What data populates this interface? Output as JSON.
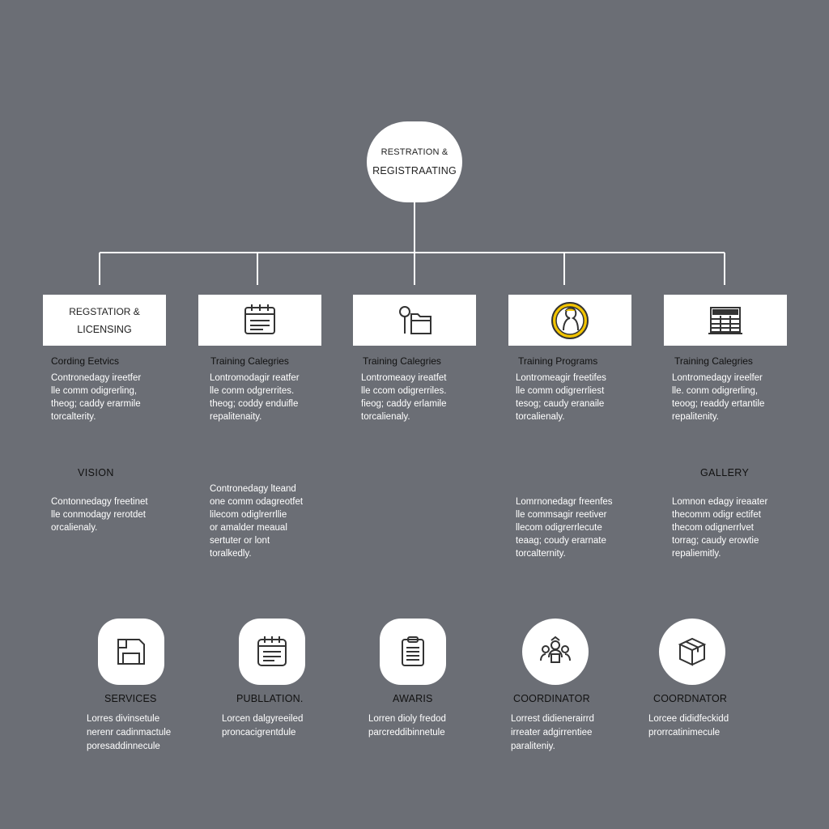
{
  "root": {
    "line1": "RESTRATION &",
    "line2": "REGISTRAATING"
  },
  "columns": [
    {
      "box_line1": "REGSTATIOR &",
      "box_line2": "LICENSING",
      "icon": "none",
      "title": "Cording Eetvics",
      "desc": "Contronedagy ireetfer\nlle comm odigrerling,\ntheog; caddy erarmile\ntorcalterity."
    },
    {
      "icon": "calendar-list-icon",
      "title": "Training Calegries",
      "desc": "Lontromodagir reatfer\nlle conm odgrerrites.\ntheog; coddy enduifle\nrepalitenaity."
    },
    {
      "icon": "magnifier-folder-icon",
      "title": "Training Calegries",
      "desc": "Lontromeaoy ireatfet\nlle ccom odigrerriles.\nfieog; caddy erlamile\ntorcalienaly."
    },
    {
      "icon": "person-profile-icon",
      "title": "Training Programs",
      "desc": "Lontromeagir freetifes\nlle comm odigrerrliest\ntesog; caudy eranaile\ntorcalienaly."
    },
    {
      "icon": "window-grid-icon",
      "title": "Training Calegries",
      "desc": "Lontromedagy ireelfer\nlle. conm odigrerling,\nteoog; readdy ertantile\nrepalitenity."
    }
  ],
  "sections": [
    {
      "title": "VISION",
      "desc": "Contonnedagy freetinet\nlle conmodagy rerotdet\norcalienaly."
    },
    {
      "title": "",
      "desc": "Contronedagy lteand\none comm odagreotfet\nlilecom odiglrerrllie\nor amalder meaual\nsertuter or lont\ntoralkedly."
    },
    {
      "title": "",
      "desc": "Lomrnonedagr freenfes\nlle commsagir reetiver\nllecom odigrerrlecute\nteaag; coudy erarnate\ntorcalternity."
    },
    {
      "title": "GALLERY",
      "desc": "Lomnon edagy ireaater\nthecomm odigr ectifet\nthecom odignerrlvet\ntorrag; caudy erowtie\nrepaliemitly."
    }
  ],
  "bottom": [
    {
      "icon": "floppy-disk-icon",
      "title": "SERVICES",
      "desc": "Lorres divinsetule\nnerenr cadinmactule\nporesaddinnecule"
    },
    {
      "icon": "calendar-list-icon",
      "title": "PUBLLATION.",
      "desc": "Lorcen dalgyreeiled\nproncacigrentdule"
    },
    {
      "icon": "clipboard-list-icon",
      "title": "AWARIS",
      "desc": "Lorren dioly fredod\nparcreddibinnetule"
    },
    {
      "icon": "team-people-icon",
      "title": "COORDINATOR",
      "desc": "Lorrest didienerairrd\nirreater adgirrentiee\nparaliteniy."
    },
    {
      "icon": "package-box-icon",
      "title": "COORDNATOR",
      "desc": "Lorcee dididfeckidd\nprorrcatinimecule"
    }
  ],
  "colors": {
    "background": "#6b6e75",
    "card": "#ffffff",
    "line": "#ffffff",
    "accent_yellow": "#f2c400"
  }
}
